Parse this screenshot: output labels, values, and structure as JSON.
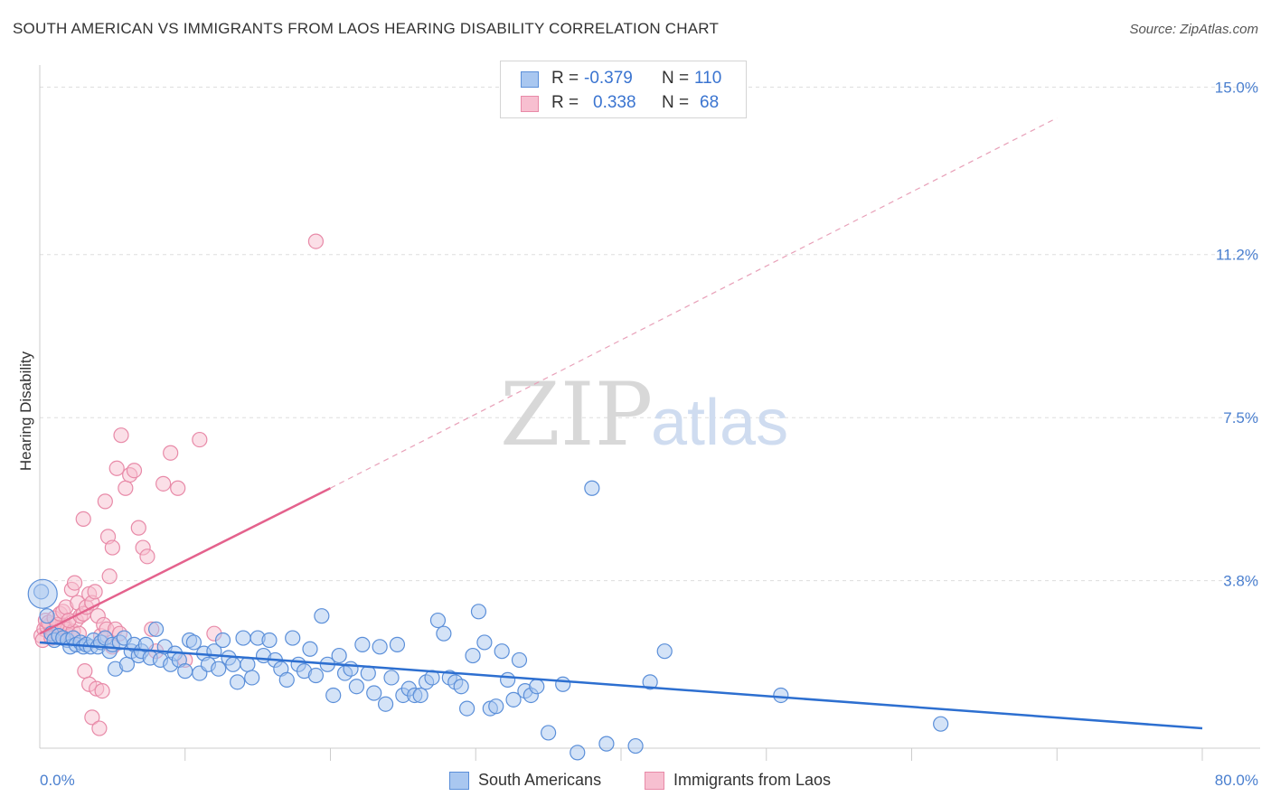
{
  "title": "SOUTH AMERICAN VS IMMIGRANTS FROM LAOS HEARING DISABILITY CORRELATION CHART",
  "source": "Source: ZipAtlas.com",
  "watermark": {
    "zip": "ZIP",
    "atlas": "atlas"
  },
  "colors": {
    "blue_fill": "#a9c7f0",
    "blue_stroke": "#5b8fd9",
    "blue_line": "#2d6fd0",
    "pink_fill": "#f7bfd0",
    "pink_stroke": "#e88aa8",
    "pink_line": "#e4628d",
    "axis_text": "#4a7fcf",
    "grid": "#dddddd"
  },
  "legend": {
    "rows": [
      {
        "r_label": "R =",
        "r_value": "-0.379",
        "n_label": "N =",
        "n_value": "110"
      },
      {
        "r_label": "R =",
        "r_value": "0.338",
        "n_label": "N =",
        "n_value": "68"
      }
    ]
  },
  "bottom_legend": [
    {
      "label": "South Americans"
    },
    {
      "label": "Immigrants from Laos"
    }
  ],
  "chart_data": {
    "type": "scatter",
    "title": "SOUTH AMERICAN VS IMMIGRANTS FROM LAOS HEARING DISABILITY CORRELATION CHART",
    "xlabel": "",
    "ylabel": "Hearing Disability",
    "xlim": [
      0,
      80
    ],
    "ylim": [
      0,
      15.5
    ],
    "x_tick_labels": [
      "0.0%",
      "80.0%"
    ],
    "y_ticks": [
      3.8,
      7.5,
      11.2,
      15.0
    ],
    "y_tick_labels": [
      "3.8%",
      "7.5%",
      "11.2%",
      "15.0%"
    ],
    "series": [
      {
        "name": "South Americans",
        "r": -0.379,
        "n": 110,
        "trend": {
          "x0": 0,
          "y0": 2.4,
          "x1": 80,
          "y1": 0.45
        },
        "points": [
          [
            0.1,
            3.55
          ],
          [
            0.5,
            3.0
          ],
          [
            0.8,
            2.6
          ],
          [
            1.0,
            2.45
          ],
          [
            1.3,
            2.55
          ],
          [
            1.6,
            2.5
          ],
          [
            1.9,
            2.45
          ],
          [
            2.1,
            2.3
          ],
          [
            2.3,
            2.5
          ],
          [
            2.5,
            2.35
          ],
          [
            2.8,
            2.4
          ],
          [
            3.0,
            2.3
          ],
          [
            3.2,
            2.35
          ],
          [
            3.5,
            2.3
          ],
          [
            3.7,
            2.45
          ],
          [
            4.0,
            2.3
          ],
          [
            4.2,
            2.4
          ],
          [
            4.5,
            2.5
          ],
          [
            4.8,
            2.2
          ],
          [
            5.0,
            2.35
          ],
          [
            5.2,
            1.8
          ],
          [
            5.5,
            2.4
          ],
          [
            5.8,
            2.5
          ],
          [
            6.0,
            1.9
          ],
          [
            6.3,
            2.2
          ],
          [
            6.5,
            2.35
          ],
          [
            6.8,
            2.1
          ],
          [
            7.0,
            2.2
          ],
          [
            7.3,
            2.35
          ],
          [
            7.6,
            2.05
          ],
          [
            8.0,
            2.7
          ],
          [
            8.3,
            2.0
          ],
          [
            8.6,
            2.3
          ],
          [
            9.0,
            1.9
          ],
          [
            9.3,
            2.15
          ],
          [
            9.6,
            2.0
          ],
          [
            10.0,
            1.75
          ],
          [
            10.3,
            2.45
          ],
          [
            10.6,
            2.4
          ],
          [
            11.0,
            1.7
          ],
          [
            11.3,
            2.15
          ],
          [
            11.6,
            1.9
          ],
          [
            12.0,
            2.2
          ],
          [
            12.3,
            1.8
          ],
          [
            12.6,
            2.45
          ],
          [
            13.0,
            2.05
          ],
          [
            13.3,
            1.9
          ],
          [
            13.6,
            1.5
          ],
          [
            14.0,
            2.5
          ],
          [
            14.3,
            1.9
          ],
          [
            14.6,
            1.6
          ],
          [
            15.0,
            2.5
          ],
          [
            15.4,
            2.1
          ],
          [
            15.8,
            2.45
          ],
          [
            16.2,
            2.0
          ],
          [
            16.6,
            1.8
          ],
          [
            17.0,
            1.55
          ],
          [
            17.4,
            2.5
          ],
          [
            17.8,
            1.9
          ],
          [
            18.2,
            1.75
          ],
          [
            18.6,
            2.25
          ],
          [
            19.0,
            1.65
          ],
          [
            19.4,
            3.0
          ],
          [
            19.8,
            1.9
          ],
          [
            20.2,
            1.2
          ],
          [
            20.6,
            2.1
          ],
          [
            21.0,
            1.7
          ],
          [
            21.4,
            1.8
          ],
          [
            21.8,
            1.4
          ],
          [
            22.2,
            2.35
          ],
          [
            22.6,
            1.7
          ],
          [
            23.0,
            1.25
          ],
          [
            23.4,
            2.3
          ],
          [
            23.8,
            1.0
          ],
          [
            24.2,
            1.6
          ],
          [
            24.6,
            2.35
          ],
          [
            25.0,
            1.2
          ],
          [
            25.4,
            1.35
          ],
          [
            25.8,
            1.2
          ],
          [
            26.2,
            1.2
          ],
          [
            26.6,
            1.5
          ],
          [
            27.0,
            1.6
          ],
          [
            27.4,
            2.9
          ],
          [
            27.8,
            2.6
          ],
          [
            28.2,
            1.6
          ],
          [
            28.6,
            1.5
          ],
          [
            29.0,
            1.4
          ],
          [
            29.4,
            0.9
          ],
          [
            29.8,
            2.1
          ],
          [
            30.2,
            3.1
          ],
          [
            30.6,
            2.4
          ],
          [
            31.0,
            0.9
          ],
          [
            31.4,
            0.95
          ],
          [
            31.8,
            2.2
          ],
          [
            32.2,
            1.55
          ],
          [
            32.6,
            1.1
          ],
          [
            33.0,
            2.0
          ],
          [
            33.4,
            1.3
          ],
          [
            33.8,
            1.2
          ],
          [
            34.2,
            1.4
          ],
          [
            35.0,
            0.35
          ],
          [
            36.0,
            1.45
          ],
          [
            37.0,
            -0.1
          ],
          [
            38.0,
            5.9
          ],
          [
            39.0,
            0.1
          ],
          [
            41.0,
            0.05
          ],
          [
            42.0,
            1.5
          ],
          [
            43.0,
            2.2
          ],
          [
            51.0,
            1.2
          ],
          [
            62.0,
            0.55
          ]
        ]
      },
      {
        "name": "Immigrants from Laos",
        "r": 0.338,
        "n": 68,
        "trend": {
          "x0": 0,
          "y0": 2.6,
          "x1": 20,
          "y1": 5.9
        },
        "trend_dashed": {
          "x0": 20,
          "y0": 5.9,
          "x1": 70,
          "y1": 14.3
        },
        "points": [
          [
            0.1,
            2.55
          ],
          [
            0.3,
            2.7
          ],
          [
            0.5,
            2.75
          ],
          [
            0.7,
            2.8
          ],
          [
            0.9,
            2.65
          ],
          [
            1.1,
            2.7
          ],
          [
            1.3,
            2.6
          ],
          [
            1.5,
            2.75
          ],
          [
            1.7,
            2.8
          ],
          [
            1.9,
            2.7
          ],
          [
            2.1,
            2.55
          ],
          [
            2.3,
            2.65
          ],
          [
            2.5,
            2.9
          ],
          [
            2.7,
            2.6
          ],
          [
            0.2,
            2.45
          ],
          [
            0.4,
            2.9
          ],
          [
            0.6,
            2.85
          ],
          [
            0.8,
            2.5
          ],
          [
            1.0,
            2.95
          ],
          [
            1.2,
            2.8
          ],
          [
            1.4,
            3.05
          ],
          [
            1.6,
            3.1
          ],
          [
            1.8,
            3.2
          ],
          [
            2.0,
            2.9
          ],
          [
            2.2,
            3.6
          ],
          [
            2.4,
            3.75
          ],
          [
            2.6,
            3.3
          ],
          [
            2.8,
            3.0
          ],
          [
            3.0,
            3.05
          ],
          [
            3.2,
            3.2
          ],
          [
            3.4,
            3.5
          ],
          [
            3.6,
            3.3
          ],
          [
            3.8,
            3.55
          ],
          [
            4.0,
            3.0
          ],
          [
            4.2,
            2.55
          ],
          [
            4.4,
            2.8
          ],
          [
            4.6,
            2.7
          ],
          [
            4.8,
            3.9
          ],
          [
            5.0,
            2.3
          ],
          [
            5.2,
            2.7
          ],
          [
            3.1,
            1.75
          ],
          [
            3.4,
            1.45
          ],
          [
            3.6,
            0.7
          ],
          [
            3.9,
            1.35
          ],
          [
            4.1,
            0.45
          ],
          [
            4.3,
            1.3
          ],
          [
            4.5,
            5.6
          ],
          [
            4.7,
            4.8
          ],
          [
            5.0,
            4.55
          ],
          [
            5.3,
            6.35
          ],
          [
            5.6,
            7.1
          ],
          [
            5.9,
            5.9
          ],
          [
            6.2,
            6.2
          ],
          [
            6.5,
            6.3
          ],
          [
            6.8,
            5.0
          ],
          [
            7.1,
            4.55
          ],
          [
            7.4,
            4.35
          ],
          [
            7.7,
            2.7
          ],
          [
            8.0,
            2.2
          ],
          [
            8.5,
            6.0
          ],
          [
            9.0,
            6.7
          ],
          [
            9.5,
            5.9
          ],
          [
            10.0,
            2.0
          ],
          [
            11.0,
            7.0
          ],
          [
            12.0,
            2.6
          ],
          [
            3.0,
            5.2
          ],
          [
            5.5,
            2.6
          ],
          [
            19.0,
            11.5
          ]
        ]
      }
    ]
  }
}
